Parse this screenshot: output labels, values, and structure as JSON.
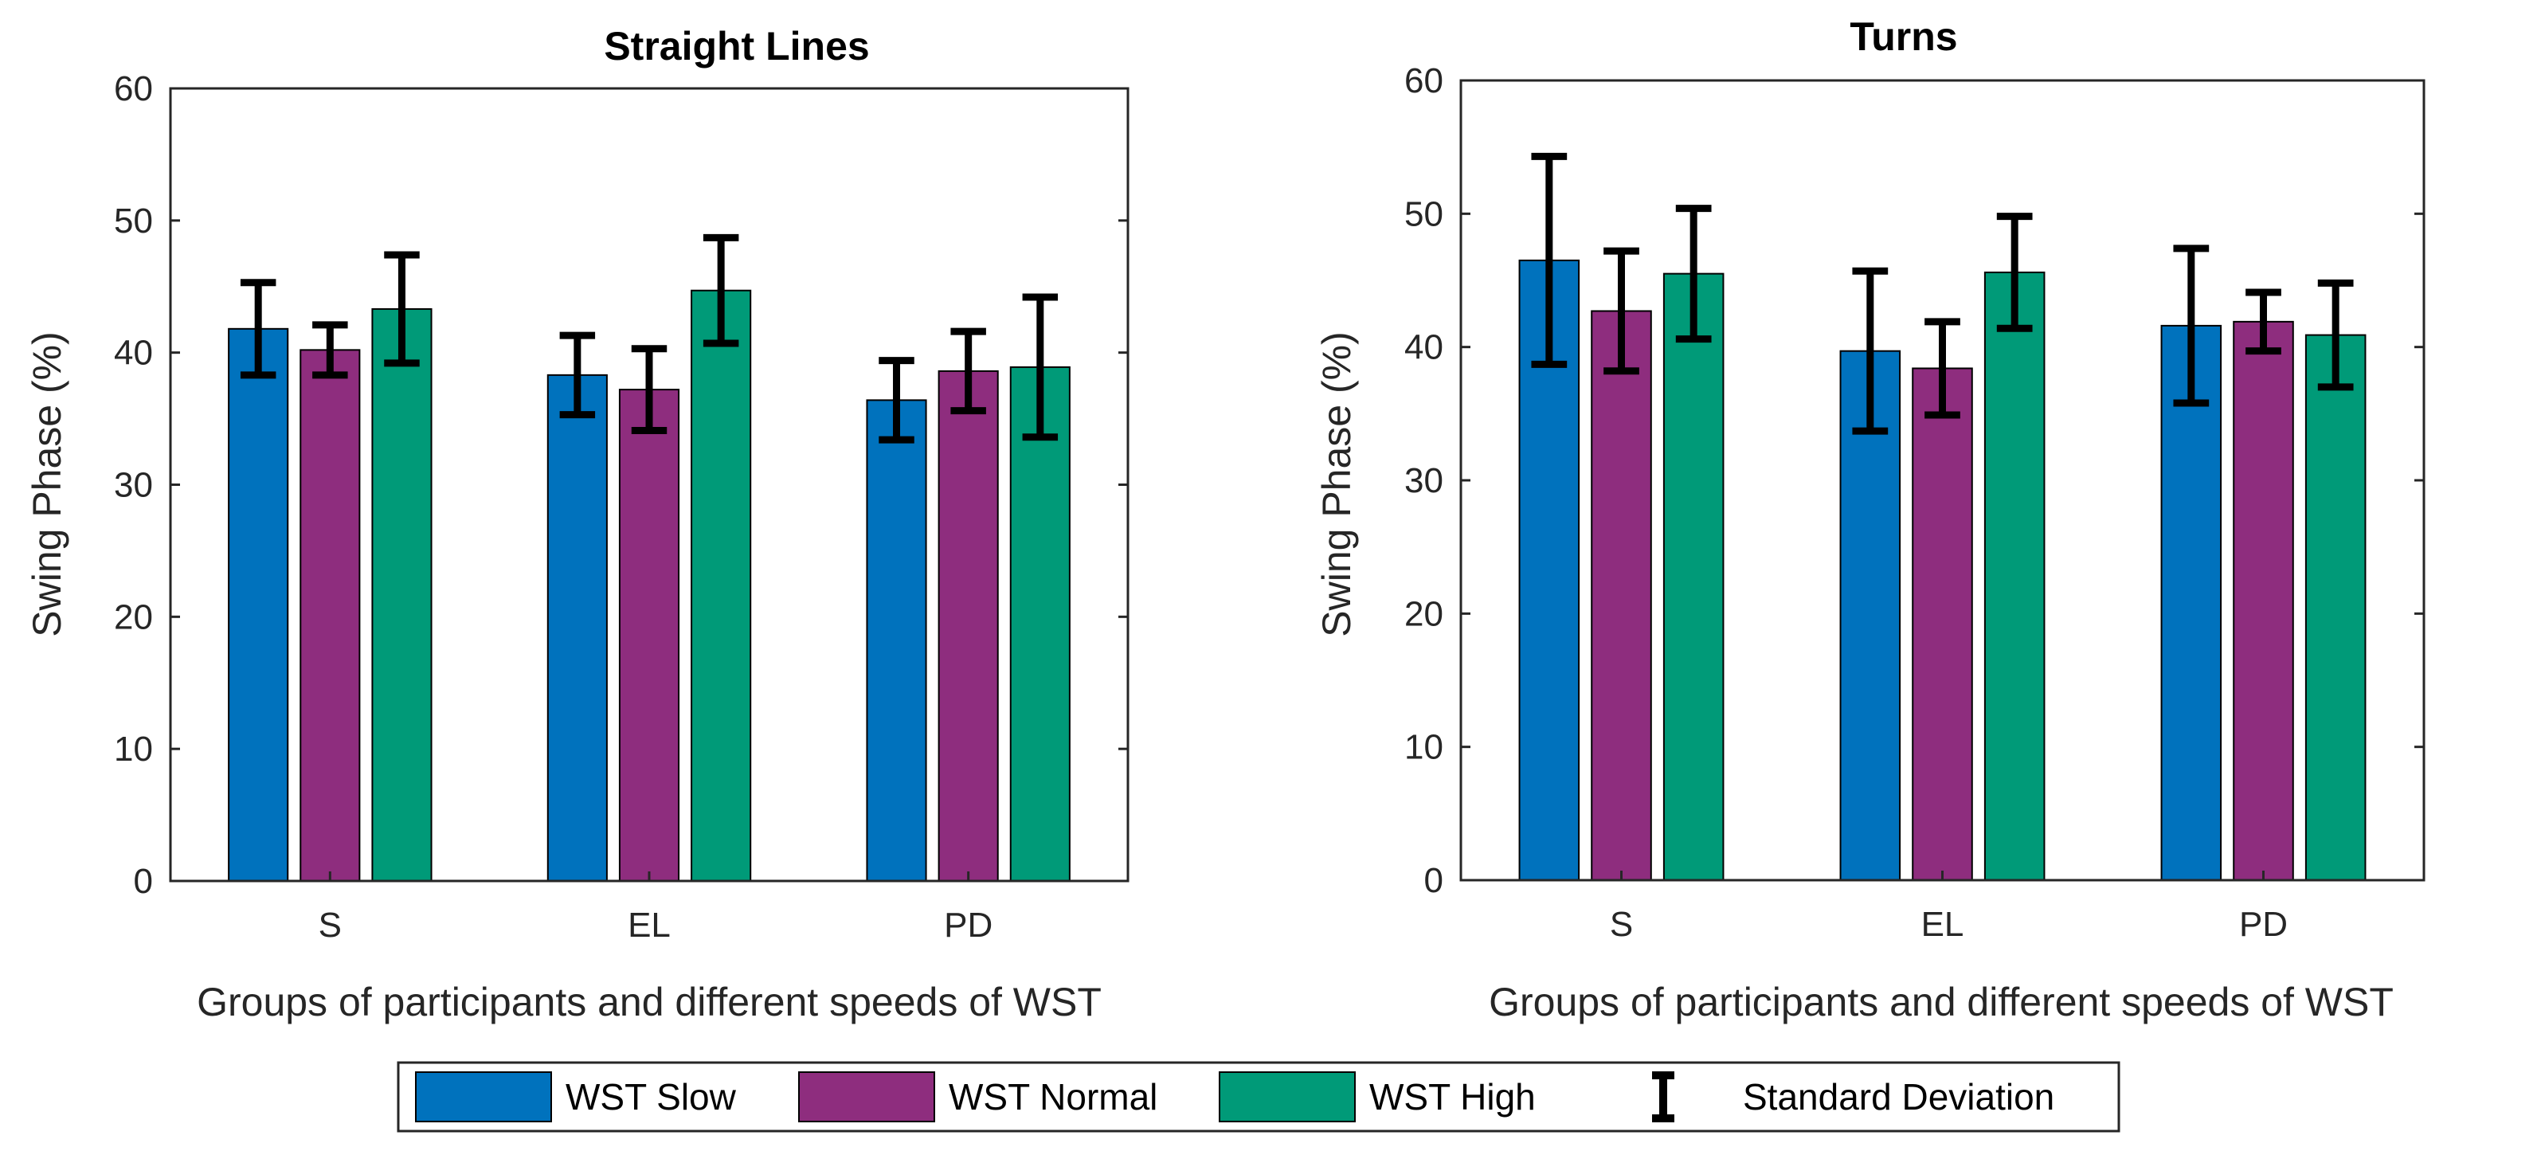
{
  "chart_data": [
    {
      "type": "bar",
      "title": "Straight Lines",
      "xlabel": "Groups of participants and different speeds of WST",
      "ylabel": "Swing Phase (%)",
      "ylim": [
        0,
        60
      ],
      "yticks": [
        0,
        10,
        20,
        30,
        40,
        50,
        60
      ],
      "categories": [
        "S",
        "EL",
        "PD"
      ],
      "series": [
        {
          "name": "WST Slow",
          "values": [
            41.8,
            38.3,
            36.4
          ],
          "std": [
            3.5,
            3.0,
            3.0
          ]
        },
        {
          "name": "WST Normal",
          "values": [
            40.2,
            37.2,
            38.6
          ],
          "std": [
            1.9,
            3.1,
            3.0
          ]
        },
        {
          "name": "WST High",
          "values": [
            43.3,
            44.7,
            38.9
          ],
          "std": [
            4.1,
            4.0,
            5.3
          ]
        }
      ]
    },
    {
      "type": "bar",
      "title": "Turns",
      "xlabel": "Groups of participants and different speeds of WST",
      "ylabel": "Swing Phase (%)",
      "ylim": [
        0,
        60
      ],
      "yticks": [
        0,
        10,
        20,
        30,
        40,
        50,
        60
      ],
      "categories": [
        "S",
        "EL",
        "PD"
      ],
      "series": [
        {
          "name": "WST Slow",
          "values": [
            46.5,
            39.7,
            41.6
          ],
          "std": [
            7.8,
            6.0,
            5.8
          ]
        },
        {
          "name": "WST Normal",
          "values": [
            42.7,
            38.4,
            41.9
          ],
          "std": [
            4.5,
            3.5,
            2.2
          ]
        },
        {
          "name": "WST High",
          "values": [
            45.5,
            45.6,
            40.9
          ],
          "std": [
            4.9,
            4.2,
            3.9
          ]
        }
      ]
    }
  ],
  "legend": {
    "items": [
      "WST Slow",
      "WST Normal",
      "WST High"
    ],
    "std_label": "Standard Deviation",
    "placement": "bottom-center"
  },
  "colors": {
    "WST Slow": "#0072BD",
    "WST Normal": "#8E2D7E",
    "WST High": "#009A78",
    "axis": "#262626",
    "errorbar": "#000000"
  }
}
